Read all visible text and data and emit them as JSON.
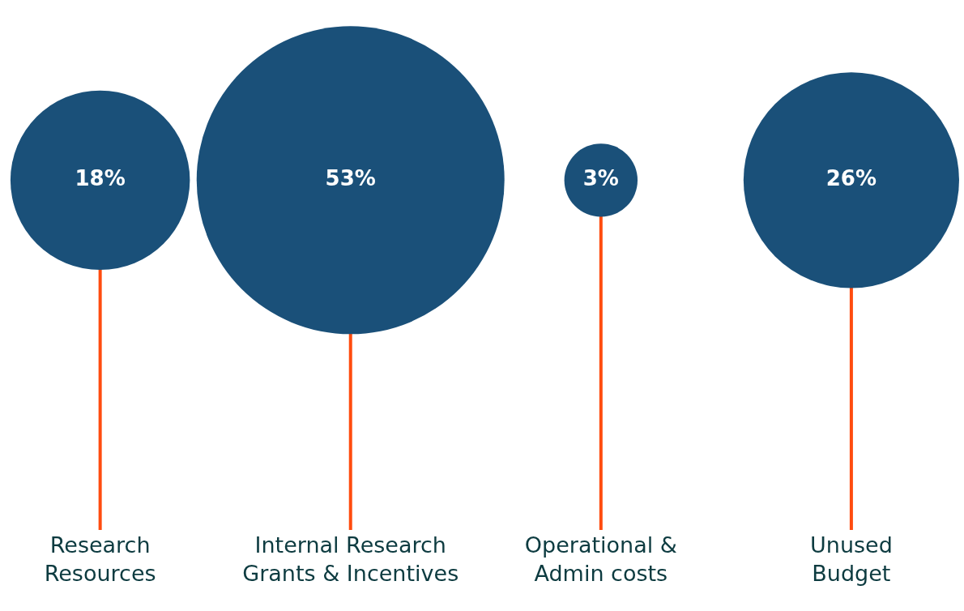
{
  "chart_data": {
    "type": "other",
    "categories": [
      "Research\nResources",
      "Internal Research\nGrants & Incentives",
      "Operational &\nAdmin costs",
      "Unused\nBudget"
    ],
    "values": [
      18,
      53,
      3,
      26
    ],
    "value_labels": [
      "18%",
      "53%",
      "3%",
      "26%"
    ],
    "color": "#1a5079"
  }
}
